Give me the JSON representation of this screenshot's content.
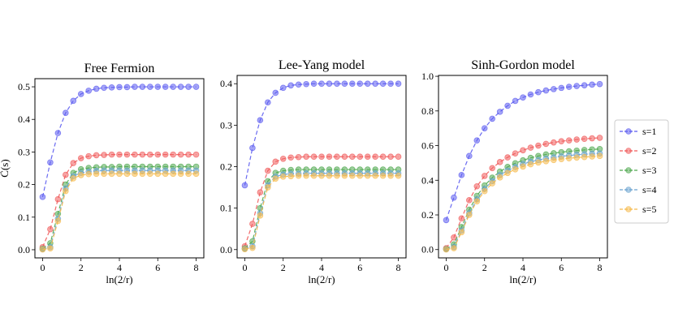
{
  "chart_data": [
    {
      "type": "line",
      "title": "Free Fermion",
      "xlabel": "ln(2/r)",
      "ylabel": "C̃(s)",
      "xlim": [
        -0.4,
        8.4
      ],
      "ylim": [
        -0.025,
        0.525
      ],
      "xticks": [
        0,
        2,
        4,
        6,
        8
      ],
      "yticks": [
        0.0,
        0.1,
        0.2,
        0.3,
        0.4,
        0.5
      ],
      "ytick_labels": [
        "0.0",
        "0.1",
        "0.2",
        "0.3",
        "0.4",
        "0.5"
      ],
      "x": [
        0,
        0.4,
        0.8,
        1.2,
        1.6,
        2.0,
        2.4,
        2.8,
        3.2,
        3.6,
        4.0,
        4.4,
        4.8,
        5.2,
        5.6,
        6.0,
        6.4,
        6.8,
        7.2,
        7.6,
        8.0
      ],
      "series": [
        {
          "name": "s=1",
          "values": [
            0.162,
            0.268,
            0.358,
            0.42,
            0.457,
            0.478,
            0.488,
            0.494,
            0.497,
            0.498,
            0.499,
            0.499,
            0.5,
            0.5,
            0.5,
            0.5,
            0.5,
            0.5,
            0.5,
            0.5,
            0.5
          ]
        },
        {
          "name": "s=2",
          "values": [
            0.008,
            0.063,
            0.155,
            0.23,
            0.266,
            0.281,
            0.287,
            0.29,
            0.291,
            0.292,
            0.292,
            0.292,
            0.292,
            0.292,
            0.292,
            0.292,
            0.292,
            0.292,
            0.292,
            0.292,
            0.292
          ]
        },
        {
          "name": "s=3",
          "values": [
            0.003,
            0.02,
            0.11,
            0.2,
            0.236,
            0.247,
            0.251,
            0.253,
            0.254,
            0.254,
            0.255,
            0.255,
            0.255,
            0.255,
            0.255,
            0.255,
            0.255,
            0.255,
            0.255,
            0.255,
            0.255
          ]
        },
        {
          "name": "s=4",
          "values": [
            0.002,
            0.008,
            0.095,
            0.188,
            0.226,
            0.236,
            0.24,
            0.242,
            0.243,
            0.243,
            0.243,
            0.243,
            0.243,
            0.243,
            0.243,
            0.243,
            0.243,
            0.243,
            0.243,
            0.243,
            0.243
          ]
        },
        {
          "name": "s=5",
          "values": [
            0.001,
            0.004,
            0.088,
            0.18,
            0.219,
            0.229,
            0.232,
            0.233,
            0.233,
            0.233,
            0.233,
            0.233,
            0.233,
            0.233,
            0.233,
            0.233,
            0.233,
            0.233,
            0.233,
            0.233,
            0.233
          ]
        }
      ]
    },
    {
      "type": "line",
      "title": "Lee-Yang model",
      "xlabel": "ln(2/r)",
      "ylabel": "",
      "xlim": [
        -0.4,
        8.4
      ],
      "ylim": [
        -0.02,
        0.42
      ],
      "xticks": [
        0,
        2,
        4,
        6,
        8
      ],
      "yticks": [
        0.0,
        0.1,
        0.2,
        0.3,
        0.4
      ],
      "ytick_labels": [
        "0.0",
        "0.1",
        "0.2",
        "0.3",
        "0.4"
      ],
      "x": [
        0,
        0.4,
        0.8,
        1.2,
        1.6,
        2.0,
        2.4,
        2.8,
        3.2,
        3.6,
        4.0,
        4.4,
        4.8,
        5.2,
        5.6,
        6.0,
        6.4,
        6.8,
        7.2,
        7.6,
        8.0
      ],
      "series": [
        {
          "name": "s=1",
          "values": [
            0.155,
            0.245,
            0.312,
            0.355,
            0.378,
            0.39,
            0.396,
            0.398,
            0.399,
            0.4,
            0.4,
            0.4,
            0.4,
            0.4,
            0.4,
            0.4,
            0.4,
            0.4,
            0.4,
            0.4,
            0.4
          ]
        },
        {
          "name": "s=2",
          "values": [
            0.008,
            0.062,
            0.138,
            0.19,
            0.212,
            0.219,
            0.222,
            0.223,
            0.224,
            0.224,
            0.224,
            0.224,
            0.224,
            0.224,
            0.224,
            0.224,
            0.224,
            0.224,
            0.224,
            0.224,
            0.224
          ]
        },
        {
          "name": "s=3",
          "values": [
            0.003,
            0.02,
            0.1,
            0.165,
            0.185,
            0.19,
            0.192,
            0.193,
            0.193,
            0.193,
            0.193,
            0.193,
            0.193,
            0.193,
            0.193,
            0.193,
            0.193,
            0.193,
            0.193,
            0.193,
            0.193
          ]
        },
        {
          "name": "s=4",
          "values": [
            0.002,
            0.008,
            0.088,
            0.155,
            0.176,
            0.181,
            0.183,
            0.183,
            0.184,
            0.184,
            0.184,
            0.184,
            0.184,
            0.184,
            0.184,
            0.184,
            0.184,
            0.184,
            0.184,
            0.184,
            0.184
          ]
        },
        {
          "name": "s=5",
          "values": [
            0.001,
            0.004,
            0.082,
            0.15,
            0.171,
            0.176,
            0.177,
            0.178,
            0.178,
            0.178,
            0.178,
            0.178,
            0.178,
            0.178,
            0.178,
            0.178,
            0.178,
            0.178,
            0.178,
            0.178,
            0.178
          ]
        }
      ]
    },
    {
      "type": "line",
      "title": "Sinh-Gordon model",
      "xlabel": "ln(2/r)",
      "ylabel": "",
      "xlim": [
        -0.4,
        8.4
      ],
      "ylim": [
        -0.048,
        1.005
      ],
      "xticks": [
        0,
        2,
        4,
        6,
        8
      ],
      "yticks": [
        0.0,
        0.2,
        0.4,
        0.6,
        0.8,
        1.0
      ],
      "ytick_labels": [
        "0.0",
        "0.2",
        "0.4",
        "0.6",
        "0.8",
        "1.0"
      ],
      "x": [
        0,
        0.4,
        0.8,
        1.2,
        1.6,
        2.0,
        2.4,
        2.8,
        3.2,
        3.6,
        4.0,
        4.4,
        4.8,
        5.2,
        5.6,
        6.0,
        6.4,
        6.8,
        7.2,
        7.6,
        8.0
      ],
      "series": [
        {
          "name": "s=1",
          "values": [
            0.17,
            0.3,
            0.43,
            0.54,
            0.63,
            0.7,
            0.755,
            0.795,
            0.83,
            0.858,
            0.878,
            0.895,
            0.908,
            0.918,
            0.926,
            0.933,
            0.939,
            0.944,
            0.948,
            0.952,
            0.955
          ]
        },
        {
          "name": "s=2",
          "values": [
            0.008,
            0.07,
            0.18,
            0.285,
            0.365,
            0.425,
            0.47,
            0.505,
            0.532,
            0.555,
            0.573,
            0.588,
            0.6,
            0.61,
            0.618,
            0.625,
            0.63,
            0.635,
            0.639,
            0.642,
            0.645
          ]
        },
        {
          "name": "s=3",
          "values": [
            0.003,
            0.03,
            0.13,
            0.23,
            0.31,
            0.37,
            0.415,
            0.45,
            0.477,
            0.498,
            0.515,
            0.529,
            0.54,
            0.549,
            0.556,
            0.562,
            0.567,
            0.571,
            0.575,
            0.578,
            0.58
          ]
        },
        {
          "name": "s=4",
          "values": [
            0.002,
            0.015,
            0.11,
            0.21,
            0.29,
            0.35,
            0.395,
            0.43,
            0.456,
            0.477,
            0.494,
            0.507,
            0.517,
            0.525,
            0.532,
            0.538,
            0.543,
            0.547,
            0.55,
            0.553,
            0.555
          ]
        },
        {
          "name": "s=5",
          "values": [
            0.001,
            0.008,
            0.1,
            0.2,
            0.278,
            0.337,
            0.382,
            0.416,
            0.442,
            0.463,
            0.479,
            0.492,
            0.502,
            0.51,
            0.517,
            0.522,
            0.527,
            0.531,
            0.534,
            0.537,
            0.54
          ]
        }
      ]
    }
  ],
  "legend": {
    "placement": "right",
    "entries": [
      "s=1",
      "s=2",
      "s=3",
      "s=4",
      "s=5"
    ]
  },
  "series_colors": [
    "#5b5bf0",
    "#f05a5a",
    "#4ea84e",
    "#6aa2cf",
    "#f5b94a"
  ]
}
